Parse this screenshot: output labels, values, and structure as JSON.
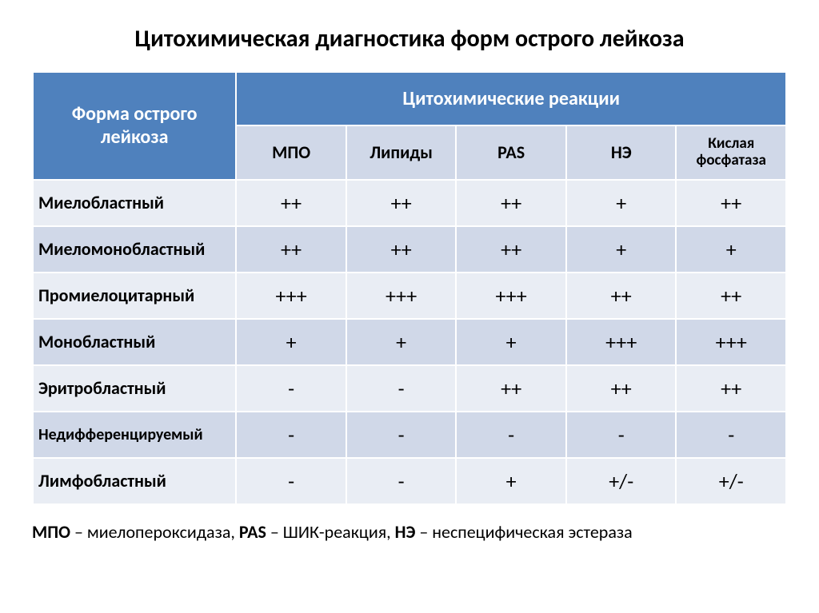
{
  "title": "Цитохимическая диагностика форм острого лейкоза",
  "header": {
    "rowHeader": "Форма острого лейкоза",
    "groupHeader": "Цитохимические реакции",
    "columns": [
      "МПО",
      "Липиды",
      "PAS",
      "НЭ",
      "Кислая фосфатаза"
    ]
  },
  "rows": [
    {
      "label": "Миелобластный",
      "cells": [
        "++",
        "++",
        "++",
        "+",
        "++"
      ]
    },
    {
      "label": "Миеломонобластный",
      "cells": [
        "++",
        "++",
        "++",
        "+",
        "+"
      ]
    },
    {
      "label": "Промиелоцитарный",
      "cells": [
        "+++",
        "+++",
        "+++",
        "++",
        "++"
      ]
    },
    {
      "label": "Монобластный",
      "cells": [
        "+",
        "+",
        "+",
        "+++",
        "+++"
      ]
    },
    {
      "label": "Эритробластный",
      "cells": [
        "-",
        "-",
        "++",
        "++",
        "++"
      ]
    },
    {
      "label": "Недифференцируемый",
      "cells": [
        "-",
        "-",
        "-",
        "-",
        "-"
      ]
    },
    {
      "label": "Лимфобластный",
      "cells": [
        "-",
        "-",
        "+",
        "+/-",
        "+/-"
      ]
    }
  ],
  "footnote": {
    "k1": "МПО",
    "v1": " – миелопероксидаза, ",
    "k2": "PAS",
    "v2": " – ШИК-реакция, ",
    "k3": "НЭ",
    "v3": " – неспецифическая эстераза"
  },
  "style": {
    "headerBg": "#4f81bd",
    "headerFg": "#ffffff",
    "subHeaderBg": "#d0d8e8",
    "bandA": "#e9edf4",
    "bandB": "#d0d8e8",
    "titleFontSize": 30,
    "labelFontSize": 22,
    "cellFontSize": 26
  }
}
